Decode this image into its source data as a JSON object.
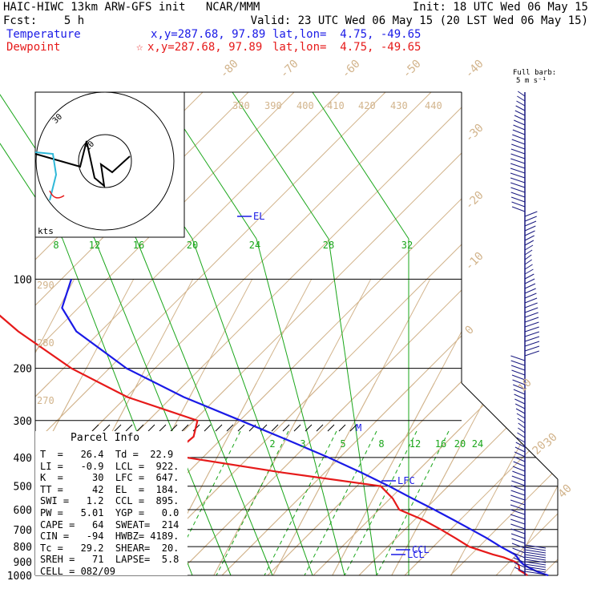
{
  "header": {
    "line1_left": "HAIC-HIWC 13km ARW-GFS init   NCAR/MMM",
    "line1_right": "Init: 18 UTC Wed 06 May 15",
    "line2_left": "Fcst:    5 h",
    "line2_right": "Valid: 23 UTC Wed 06 May 15 (20 LST Wed 06 May 15)",
    "temp_label": "Temperature",
    "temp_xy": "x,y=287.68, 97.89",
    "temp_latlon": "lat,lon=  4.75, -49.65",
    "dew_label": "Dewpoint",
    "dew_star": "☆",
    "dew_xy": "x,y=287.68, 97.89",
    "dew_latlon": "lat,lon=  4.75, -49.65",
    "barb_key_1": "Full barb:",
    "barb_key_2": "5 m s⁻¹"
  },
  "hodograph": {
    "units": "kts",
    "ring_outer": "30",
    "ring_inner": "10"
  },
  "parcel_info": {
    "title": "Parcel Info",
    "rows": [
      "T  =   26.4  Td =  22.9",
      "LI =   -0.9  LCL =  922.",
      "K  =     30  LFC =  647.",
      "TT =     42  EL  =  184.",
      "SWI =   1.2  CCL =  895.",
      "PW =   5.01  YGP =   0.0",
      "CAPE =   64  SWEAT=  214",
      "CIN =   -94  HWBZ= 4189.",
      "Tc =   29.2  SHEAR=  20.",
      "SREH =   71  LAPSE=  5.8",
      "CELL = 082/09"
    ]
  },
  "chart_data": {
    "type": "line",
    "title": "",
    "xlabel": "",
    "ylabel": "",
    "pressure_levels": [
      100,
      200,
      300,
      400,
      500,
      600,
      700,
      800,
      900,
      1000
    ],
    "isotherm_labels": [
      -80,
      -70,
      -60,
      -50,
      -40,
      -30,
      -20,
      -10,
      0,
      10,
      20,
      30,
      40
    ],
    "theta_labels": [
      380,
      390,
      400,
      410,
      420,
      430,
      440,
      290,
      280,
      270
    ],
    "mixing_ratio_labels_upper": [
      8,
      12,
      16,
      20,
      24,
      28,
      32
    ],
    "mixing_ratio_labels_lower": [
      2,
      3,
      5,
      8,
      12,
      16,
      20,
      24
    ],
    "series": [
      {
        "name": "Temperature",
        "color": "#1a1ae6",
        "pressure": [
          1000,
          980,
          960,
          940,
          920,
          900,
          870,
          850,
          800,
          750,
          700,
          650,
          600,
          550,
          500,
          450,
          400,
          350,
          300,
          250,
          200,
          150,
          125,
          100
        ],
        "temperature": [
          26.4,
          24.8,
          23.5,
          22.4,
          21.3,
          20.5,
          19.6,
          18.9,
          15.8,
          12.8,
          9.3,
          5.5,
          1.3,
          -3.4,
          -8.4,
          -14.3,
          -21.2,
          -29.5,
          -39.3,
          -51.0,
          -63.2,
          -75.0,
          -79.5,
          -80.5
        ]
      },
      {
        "name": "Dewpoint",
        "color": "#e61a1a",
        "pressure": [
          1000,
          980,
          960,
          940,
          920,
          900,
          870,
          850,
          800,
          750,
          700,
          650,
          600,
          550,
          500,
          450,
          400,
          370,
          340,
          300,
          250,
          200,
          150,
          125,
          100
        ],
        "dewpoint": [
          22.9,
          22.0,
          21.0,
          20.8,
          20.4,
          19.6,
          17.3,
          15.2,
          10.5,
          7.5,
          4.2,
          0.4,
          -4.6,
          -6.7,
          -9.8,
          -27.5,
          -45.2,
          -47.0,
          -45.8,
          -46.6,
          -60.5,
          -72.5,
          -84.8,
          -91.5,
          -97.0
        ]
      }
    ],
    "levels_marked": {
      "LCL": 922,
      "CCL": 895,
      "LFC": 647,
      "EL": 184
    },
    "marker_labels": [
      "LCL",
      "CCL",
      "LFC",
      "EL",
      "M"
    ],
    "wind_barbs": {
      "units": "kts"
    }
  }
}
